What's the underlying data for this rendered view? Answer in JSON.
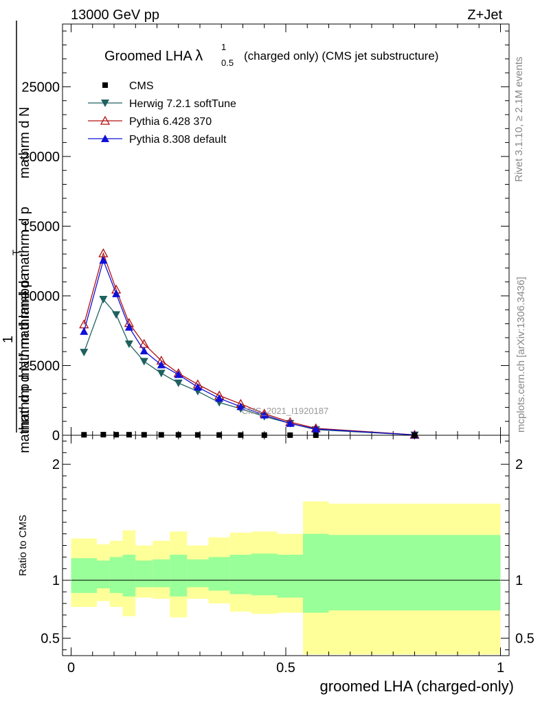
{
  "header": {
    "left": "13000 GeV pp",
    "right": "Z+Jet"
  },
  "side_labels": {
    "rivet": "Rivet 3.1.10, ≥ 2.1M events",
    "mcplots": "mcplots.cern.ch [arXiv:1306.3436]"
  },
  "watermark": "CMS_2021_I1920187",
  "chart_data": [
    {
      "type": "line",
      "title": "Groomed LHA",
      "title_symbol": "λ",
      "title_sup": "1",
      "title_sub": "0.5",
      "subtitle": "(charged only) (CMS jet substructure)",
      "ylabel_lines": [
        "mathrm d N",
        "mathrm d p mathrm d lambda",
        "1",
        "mathrm d N / mathrm d p mathrm d p",
        "T"
      ],
      "ylim": [
        0,
        29500
      ],
      "yticks": [
        0,
        5000,
        10000,
        15000,
        20000,
        25000
      ],
      "ytick_labels": [
        "0",
        "5000",
        "10000",
        "15000",
        "20000",
        "25000"
      ],
      "xlim": [
        -0.02,
        1.02
      ],
      "legend_position": "top-left",
      "x": [
        0.03,
        0.075,
        0.105,
        0.135,
        0.17,
        0.21,
        0.25,
        0.295,
        0.345,
        0.395,
        0.45,
        0.51,
        0.57,
        0.8
      ],
      "series": [
        {
          "name": "CMS",
          "color": "#000000",
          "marker": "square",
          "values": [
            35,
            45,
            40,
            40,
            35,
            30,
            30,
            25,
            20,
            15,
            10,
            8,
            5,
            1
          ]
        },
        {
          "name": "Herwig 7.2.1 softTune",
          "color": "#1f6060",
          "marker": "triangle-down",
          "values": [
            5950,
            9750,
            8650,
            6550,
            5300,
            4450,
            3750,
            3150,
            2350,
            1900,
            1350,
            850,
            400,
            20
          ]
        },
        {
          "name": "Pythia 6.428 370",
          "color": "#b01010",
          "marker": "triangle-up-open",
          "values": [
            7950,
            13050,
            10450,
            8050,
            6550,
            5350,
            4450,
            3650,
            2850,
            2250,
            1550,
            950,
            500,
            30
          ]
        },
        {
          "name": "Pythia 8.308 default",
          "color": "#1010d8",
          "marker": "triangle-up",
          "values": [
            7450,
            12550,
            10150,
            7750,
            6050,
            5050,
            4350,
            3450,
            2650,
            2050,
            1450,
            850,
            450,
            25
          ]
        }
      ]
    },
    {
      "type": "area",
      "ylabel": "Ratio to CMS",
      "ylim": [
        0.35,
        2.25
      ],
      "yticks": [
        0.5,
        1,
        2
      ],
      "ytick_labels": [
        "0.5",
        "1",
        "2"
      ],
      "xlim": [
        -0.02,
        1.02
      ],
      "xticks": [
        0,
        0.5,
        1
      ],
      "xtick_labels": [
        "0",
        "0.5",
        "1"
      ],
      "xlabel": "groomed LHA (charged-only)",
      "bins": [
        0,
        0.06,
        0.09,
        0.12,
        0.15,
        0.19,
        0.23,
        0.27,
        0.32,
        0.37,
        0.42,
        0.48,
        0.54,
        0.6,
        1.0
      ],
      "stat_band": {
        "color": "#99ff99",
        "low": [
          0.89,
          0.93,
          0.89,
          0.86,
          0.94,
          0.94,
          0.86,
          0.94,
          0.91,
          0.88,
          0.87,
          0.85,
          0.72,
          0.74
        ],
        "high": [
          1.19,
          1.17,
          1.2,
          1.22,
          1.17,
          1.18,
          1.22,
          1.18,
          1.2,
          1.22,
          1.23,
          1.22,
          1.4,
          1.39
        ]
      },
      "total_band": {
        "color": "#ffff99",
        "low": [
          0.77,
          0.82,
          0.77,
          0.69,
          0.85,
          0.84,
          0.68,
          0.84,
          0.8,
          0.73,
          0.71,
          0.72,
          0.36,
          0.36
        ],
        "high": [
          1.36,
          1.31,
          1.34,
          1.43,
          1.3,
          1.34,
          1.42,
          1.3,
          1.37,
          1.41,
          1.42,
          1.4,
          1.68,
          1.66
        ]
      },
      "reference": 1
    }
  ]
}
